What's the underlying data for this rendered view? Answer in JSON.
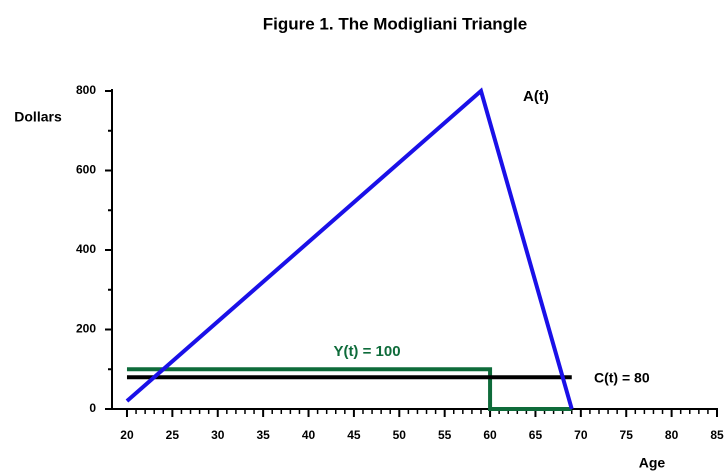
{
  "chart_data": {
    "type": "line",
    "title": "Figure 1.  The Modigliani Triangle",
    "x_label": "Age",
    "y_label": "Dollars",
    "xlim": [
      18.35,
      85
    ],
    "ylim": [
      0,
      800
    ],
    "xticks": [
      20,
      25,
      30,
      35,
      40,
      45,
      50,
      55,
      60,
      65,
      70,
      75,
      80,
      85
    ],
    "xminorticks": [
      21,
      22,
      23,
      24,
      26,
      27,
      28,
      29,
      31,
      32,
      33,
      34,
      36,
      37,
      38,
      39,
      41,
      42,
      43,
      44,
      46,
      47,
      48,
      49,
      51,
      52,
      53,
      54,
      56,
      57,
      58,
      59,
      61,
      62,
      63,
      64,
      66,
      67,
      68,
      69,
      71,
      72,
      73,
      74,
      76,
      77,
      78,
      79,
      81,
      82,
      83,
      84
    ],
    "yticks": [
      0,
      200,
      400,
      600,
      800
    ],
    "yminorticks": [
      100,
      300,
      500,
      700
    ],
    "series": [
      {
        "name": "A(t)",
        "color": "#1a10e8",
        "x": [
          20,
          59,
          69
        ],
        "values": [
          20,
          800,
          0
        ]
      },
      {
        "name": "Y(t) = 100",
        "color": "#0e6b3a",
        "x": [
          20,
          60,
          60,
          69
        ],
        "values": [
          100,
          100,
          0,
          0
        ]
      },
      {
        "name": "C(t) = 80",
        "color": "#000000",
        "x": [
          20,
          69
        ],
        "values": [
          80,
          80
        ]
      }
    ]
  }
}
